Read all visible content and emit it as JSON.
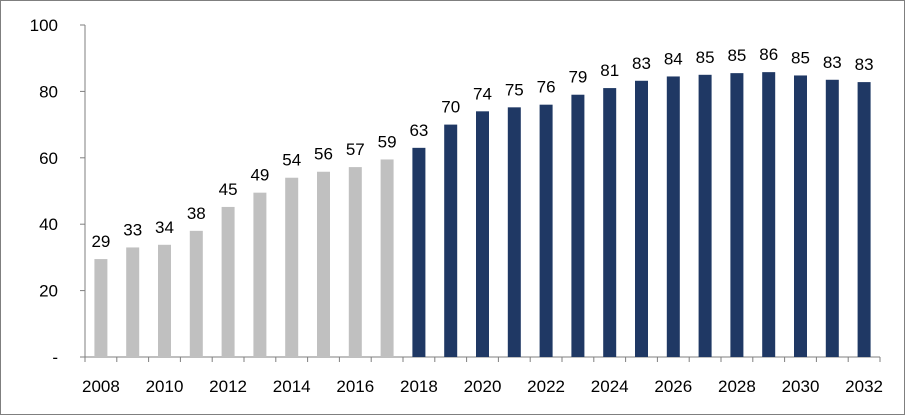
{
  "chart_data": {
    "type": "bar",
    "title": "",
    "xlabel": "",
    "ylabel": "",
    "ylim": [
      0,
      100
    ],
    "yticks": [
      {
        "value": 0,
        "label": "-"
      },
      {
        "value": 20,
        "label": "20"
      },
      {
        "value": 40,
        "label": "40"
      },
      {
        "value": 60,
        "label": "60"
      },
      {
        "value": 80,
        "label": "80"
      },
      {
        "value": 100,
        "label": "100"
      }
    ],
    "x_tick_labels": [
      "2008",
      "2010",
      "2012",
      "2014",
      "2016",
      "2018",
      "2020",
      "2022",
      "2024",
      "2026",
      "2028",
      "2030",
      "2032"
    ],
    "grid": false,
    "legend": "none",
    "categories": [
      "2008",
      "2009",
      "2010",
      "2011",
      "2012",
      "2013",
      "2014",
      "2015",
      "2016",
      "2017",
      "2018",
      "2019",
      "2020",
      "2021",
      "2022",
      "2023",
      "2024",
      "2025",
      "2026",
      "2027",
      "2028",
      "2029",
      "2030",
      "2031",
      "2032"
    ],
    "values": [
      29.5,
      33,
      33.8,
      38,
      45.2,
      49.5,
      54,
      55.8,
      57.2,
      59.5,
      63,
      70,
      74,
      75.2,
      76,
      79,
      81,
      83.2,
      84.5,
      85,
      85.5,
      85.8,
      84.8,
      83.5,
      82.8
    ],
    "data_labels": [
      "29",
      "33",
      "34",
      "38",
      "45",
      "49",
      "54",
      "56",
      "57",
      "59",
      "63",
      "70",
      "74",
      "75",
      "76",
      "79",
      "81",
      "83",
      "84",
      "85",
      "85",
      "86",
      "85",
      "83",
      "83"
    ],
    "colors": {
      "historical": "#c0c0c0",
      "forecast": "#1f3864",
      "axis": "#7f7f7f"
    },
    "forecast_start_index": 10
  }
}
